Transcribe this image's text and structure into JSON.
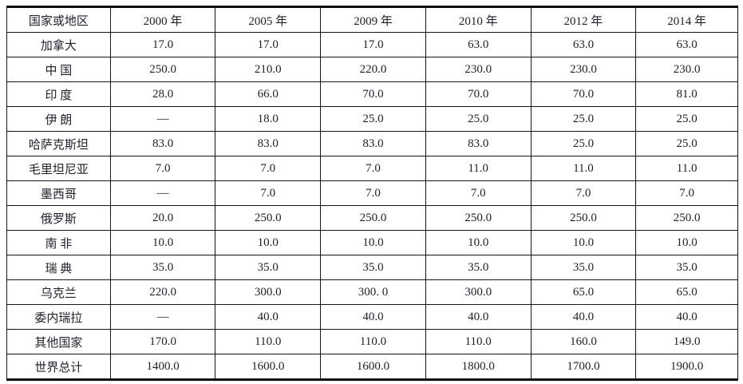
{
  "table": {
    "columns": [
      "国家或地区",
      "2000 年",
      "2005 年",
      "2009 年",
      "2010 年",
      "2012 年",
      "2014 年"
    ],
    "rows": [
      {
        "name": "加拿大",
        "values": [
          "17.0",
          "17.0",
          "17.0",
          "63.0",
          "63.0",
          "63.0"
        ]
      },
      {
        "name": "中 国",
        "values": [
          "250.0",
          "210.0",
          "220.0",
          "230.0",
          "230.0",
          "230.0"
        ]
      },
      {
        "name": "印 度",
        "values": [
          "28.0",
          "66.0",
          "70.0",
          "70.0",
          "70.0",
          "81.0"
        ]
      },
      {
        "name": "伊 朗",
        "values": [
          "—",
          "18.0",
          "25.0",
          "25.0",
          "25.0",
          "25.0"
        ]
      },
      {
        "name": "哈萨克斯坦",
        "values": [
          "83.0",
          "83.0",
          "83.0",
          "83.0",
          "25.0",
          "25.0"
        ]
      },
      {
        "name": "毛里坦尼亚",
        "values": [
          "7.0",
          "7.0",
          "7.0",
          "11.0",
          "11.0",
          "11.0"
        ]
      },
      {
        "name": "墨西哥",
        "values": [
          "—",
          "7.0",
          "7.0",
          "7.0",
          "7.0",
          "7.0"
        ]
      },
      {
        "name": "俄罗斯",
        "values": [
          "20.0",
          "250.0",
          "250.0",
          "250.0",
          "250.0",
          "250.0"
        ]
      },
      {
        "name": "南 非",
        "values": [
          "10.0",
          "10.0",
          "10.0",
          "10.0",
          "10.0",
          "10.0"
        ]
      },
      {
        "name": "瑞 典",
        "values": [
          "35.0",
          "35.0",
          "35.0",
          "35.0",
          "35.0",
          "35.0"
        ]
      },
      {
        "name": "乌克兰",
        "values": [
          "220.0",
          "300.0",
          "300.  0",
          "300.0",
          "65.0",
          "65.0"
        ]
      },
      {
        "name": "委内瑞拉",
        "values": [
          "—",
          "40.0",
          "40.0",
          "40.0",
          "40.0",
          "40.0"
        ]
      },
      {
        "name": "其他国家",
        "values": [
          "170.0",
          "110.0",
          "110.0",
          "110.0",
          "160.0",
          "149.0"
        ]
      },
      {
        "name": "世界总计",
        "values": [
          "1400.0",
          "1600.0",
          "1600.0",
          "1800.0",
          "1700.0",
          "1900.0"
        ]
      }
    ]
  }
}
